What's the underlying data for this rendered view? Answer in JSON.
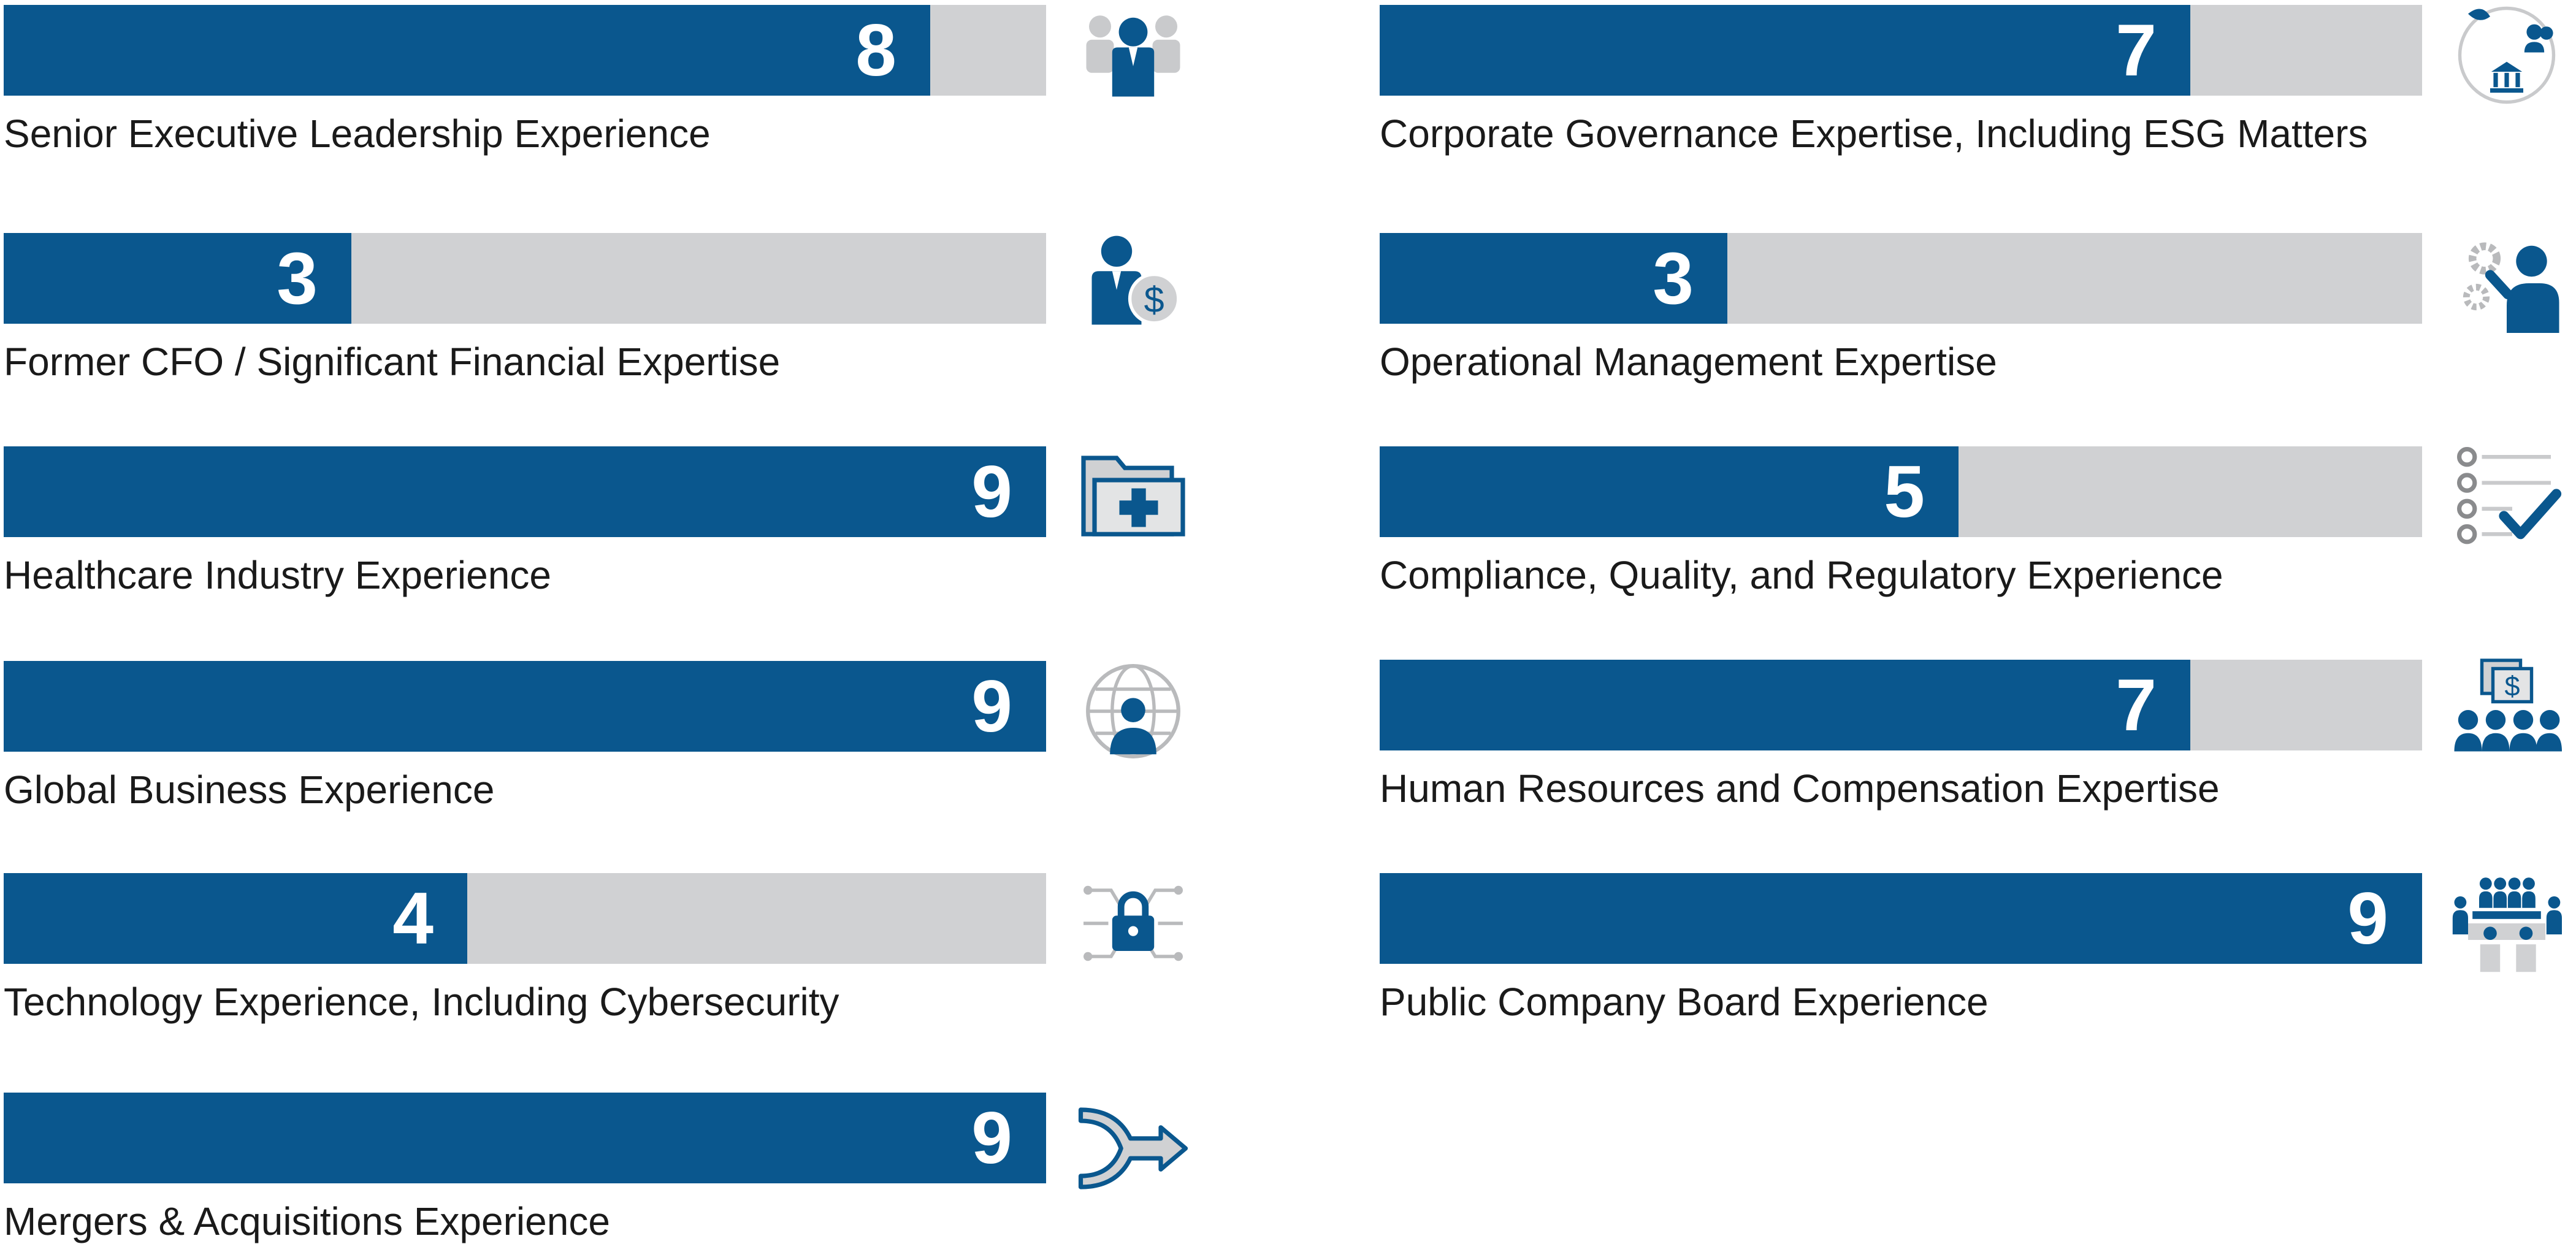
{
  "colors": {
    "fill": "#0a578e",
    "track": "#d0d1d3",
    "number": "#ffffff",
    "label": "#1a1a1a",
    "icon_gray": "#c9cacc"
  },
  "chart_data": {
    "type": "bar",
    "orientation": "horizontal",
    "ylim": [
      0,
      9
    ],
    "grid": false,
    "legend": "none",
    "items": [
      {
        "label": "Senior Executive Leadership Experience",
        "value": 8,
        "icon": "leadership-group-icon"
      },
      {
        "label": "Former CFO / Significant Financial Expertise",
        "value": 3,
        "icon": "finance-person-icon"
      },
      {
        "label": "Healthcare Industry Experience",
        "value": 9,
        "icon": "medical-folder-icon"
      },
      {
        "label": "Global Business Experience",
        "value": 9,
        "icon": "globe-person-icon"
      },
      {
        "label": "Technology Experience, Including Cybersecurity",
        "value": 4,
        "icon": "cyber-lock-icon"
      },
      {
        "label": "Mergers & Acquisitions Experience",
        "value": 9,
        "icon": "merge-arrow-icon"
      },
      {
        "label": "Corporate Governance Expertise, Including ESG Matters",
        "value": 7,
        "icon": "governance-esg-icon"
      },
      {
        "label": "Operational Management Expertise",
        "value": 3,
        "icon": "operations-gears-icon"
      },
      {
        "label": "Compliance, Quality, and Regulatory Experience",
        "value": 5,
        "icon": "checklist-icon"
      },
      {
        "label": "Human Resources and Compensation Expertise",
        "value": 7,
        "icon": "hr-compensation-icon"
      },
      {
        "label": "Public Company Board Experience",
        "value": 9,
        "icon": "boardroom-icon"
      }
    ]
  }
}
